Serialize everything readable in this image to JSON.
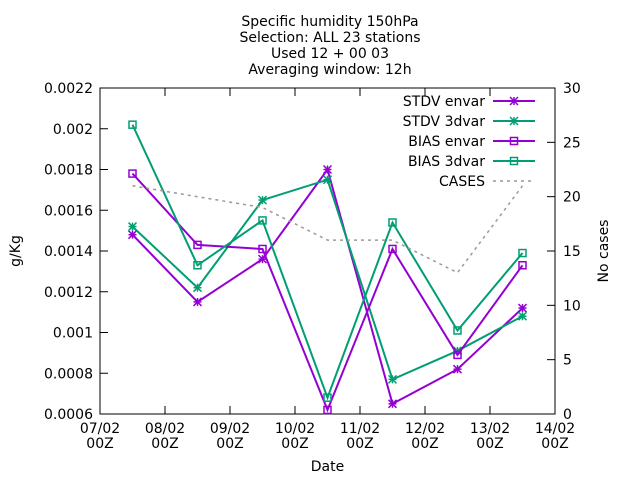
{
  "chart_data": {
    "type": "line",
    "title": [
      "Specific humidity 150hPa",
      "Selection: ALL      23 stations",
      "Used 12 + 00 03",
      "Averaging window: 12h"
    ],
    "xlabel": "Date",
    "ylabel": "g/Kg",
    "y2label": "No cases",
    "x_ticks": [
      {
        "pos": 0,
        "label": [
          "07/02",
          "00Z"
        ]
      },
      {
        "pos": 1,
        "label": [
          "08/02",
          "00Z"
        ]
      },
      {
        "pos": 2,
        "label": [
          "09/02",
          "00Z"
        ]
      },
      {
        "pos": 3,
        "label": [
          "10/02",
          "00Z"
        ]
      },
      {
        "pos": 4,
        "label": [
          "11/02",
          "00Z"
        ]
      },
      {
        "pos": 5,
        "label": [
          "12/02",
          "00Z"
        ]
      },
      {
        "pos": 6,
        "label": [
          "13/02",
          "00Z"
        ]
      },
      {
        "pos": 7,
        "label": [
          "14/02",
          "00Z"
        ]
      }
    ],
    "xlim": [
      0,
      7
    ],
    "ylim": [
      0.0006,
      0.0022
    ],
    "y_ticks": [
      "0.0006",
      "0.0008",
      "0.001",
      "0.0012",
      "0.0014",
      "0.0016",
      "0.0018",
      "0.002",
      "0.0022"
    ],
    "y2lim": [
      0,
      30
    ],
    "y2_ticks": [
      "0",
      "5",
      "10",
      "15",
      "20",
      "25",
      "30"
    ],
    "x": [
      0.5,
      1.5,
      2.5,
      3.5,
      4.5,
      5.5,
      6.5
    ],
    "legend_position": "top-right",
    "grid": false,
    "series": [
      {
        "name": "STDV envar",
        "axis": "y",
        "marker": "star",
        "color": "#9400d3",
        "values": [
          0.00148,
          0.00115,
          0.00136,
          0.0018,
          0.00065,
          0.00082,
          0.00112
        ]
      },
      {
        "name": "STDV 3dvar",
        "axis": "y",
        "marker": "star",
        "color": "#009e73",
        "values": [
          0.00152,
          0.00122,
          0.00165,
          0.00175,
          0.00077,
          0.00091,
          0.00108
        ]
      },
      {
        "name": "BIAS envar",
        "axis": "y",
        "marker": "square",
        "color": "#9400d3",
        "values": [
          0.00178,
          0.00143,
          0.00141,
          0.00062,
          0.00141,
          0.00089,
          0.00133
        ]
      },
      {
        "name": "BIAS 3dvar",
        "axis": "y",
        "marker": "square",
        "color": "#009e73",
        "values": [
          0.00202,
          0.00133,
          0.00155,
          0.00068,
          0.00154,
          0.00101,
          0.00139
        ]
      },
      {
        "name": "CASES",
        "axis": "y2",
        "marker": "none",
        "color": "#999999",
        "dashed": true,
        "values": [
          21,
          20,
          19,
          16,
          16,
          13,
          21
        ]
      }
    ]
  }
}
